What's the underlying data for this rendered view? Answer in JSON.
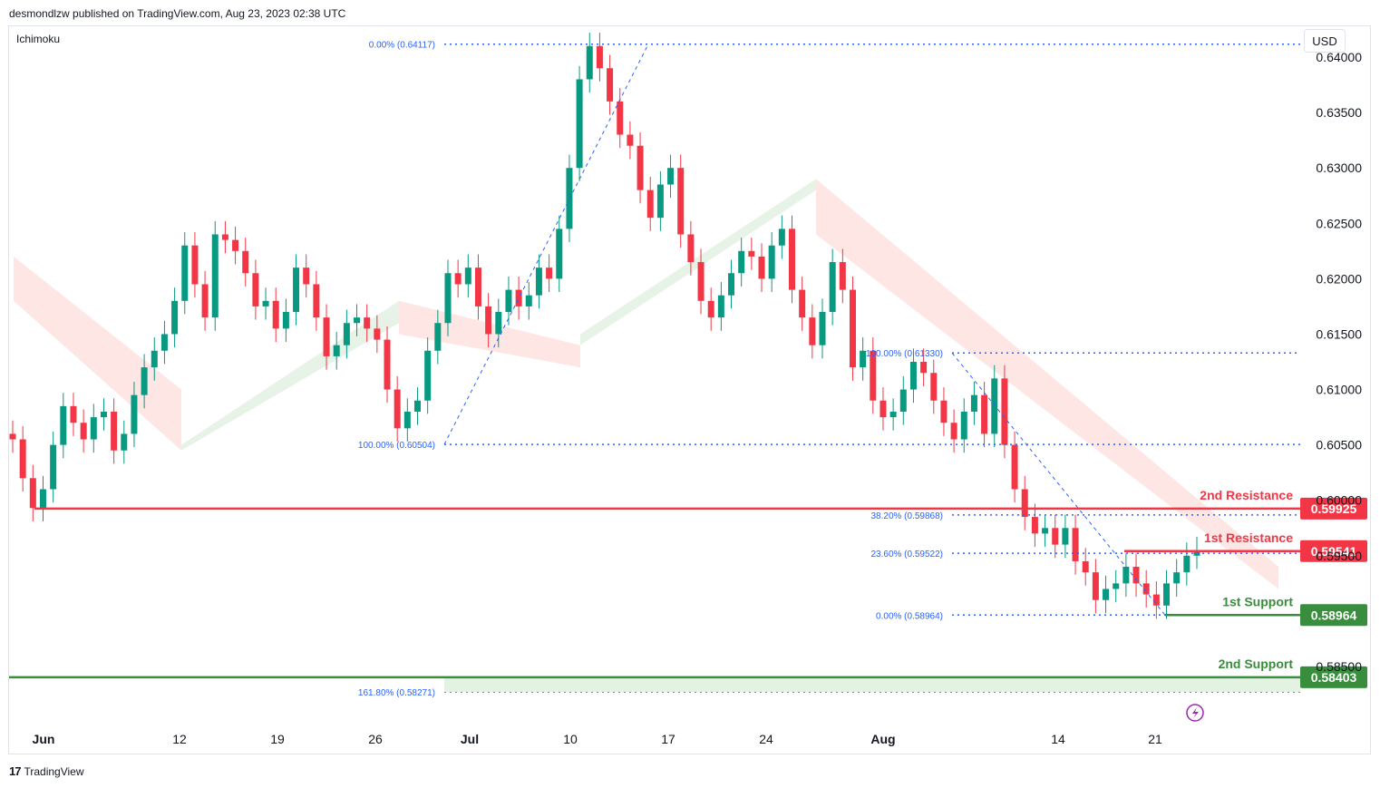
{
  "header": {
    "publisher_text": "desmondlzw published on TradingView.com, Aug 23, 2023 02:38 UTC",
    "indicator": "Ichimoku",
    "currency": "USD",
    "footer_logo": "17",
    "footer_brand": "TradingView"
  },
  "colors": {
    "up": "#089981",
    "down": "#f23645",
    "resistance": "#f23645",
    "support": "#388e3c",
    "fib": "#2962ff",
    "cloud_bull": "#e3f2e3",
    "cloud_bear": "#fde3e1"
  },
  "chart_data": {
    "type": "candlestick",
    "y_ticks": [
      "0.64000",
      "0.63500",
      "0.63000",
      "0.62500",
      "0.62000",
      "0.61500",
      "0.61000",
      "0.60500",
      "0.60000",
      "0.59500",
      "0.58500"
    ],
    "x_ticks": [
      "Jun",
      "12",
      "19",
      "26",
      "Jul",
      "10",
      "17",
      "24",
      "Aug",
      "14",
      "21"
    ],
    "ylim": [
      0.579,
      0.6425
    ],
    "levels": [
      {
        "name": "2nd Resistance",
        "value": 0.59925,
        "label": "0.59925",
        "kind": "resistance"
      },
      {
        "name": "1st Resistance",
        "value": 0.59541,
        "label": "0.59541",
        "kind": "resistance"
      },
      {
        "name": "1st Support",
        "value": 0.58964,
        "label": "0.58964",
        "kind": "support"
      },
      {
        "name": "2nd Support",
        "value": 0.58403,
        "label": "0.58403",
        "kind": "support"
      }
    ],
    "fib_labels": [
      {
        "text": "0.00% (0.64117)",
        "value": 0.64117
      },
      {
        "text": "100.00% (0.60504)",
        "value": 0.60504
      },
      {
        "text": "161.80% (0.58271)",
        "value": 0.58271
      },
      {
        "text": "100.00% (0.61330)",
        "value": 0.6133
      },
      {
        "text": "38.20% (0.59868)",
        "value": 0.59868
      },
      {
        "text": "23.60% (0.59522)",
        "value": 0.59522
      },
      {
        "text": "0.00% (0.58964)",
        "value": 0.58964
      }
    ],
    "close_series": [
      0.6055,
      0.602,
      0.5993,
      0.601,
      0.605,
      0.6085,
      0.607,
      0.6055,
      0.6075,
      0.608,
      0.6045,
      0.606,
      0.6095,
      0.612,
      0.6135,
      0.615,
      0.618,
      0.623,
      0.6195,
      0.6165,
      0.624,
      0.6235,
      0.6225,
      0.6205,
      0.6175,
      0.618,
      0.6155,
      0.617,
      0.621,
      0.6195,
      0.6165,
      0.613,
      0.614,
      0.616,
      0.6165,
      0.6155,
      0.6145,
      0.61,
      0.6065,
      0.608,
      0.609,
      0.6135,
      0.616,
      0.6205,
      0.6195,
      0.621,
      0.6175,
      0.615,
      0.617,
      0.619,
      0.6175,
      0.6185,
      0.621,
      0.62,
      0.6245,
      0.63,
      0.638,
      0.641,
      0.639,
      0.636,
      0.633,
      0.632,
      0.628,
      0.6255,
      0.6285,
      0.63,
      0.624,
      0.6215,
      0.618,
      0.6165,
      0.6185,
      0.6205,
      0.6225,
      0.622,
      0.62,
      0.623,
      0.6245,
      0.619,
      0.6165,
      0.614,
      0.617,
      0.6215,
      0.619,
      0.612,
      0.6135,
      0.609,
      0.6075,
      0.608,
      0.61,
      0.6125,
      0.6115,
      0.609,
      0.607,
      0.6055,
      0.608,
      0.6095,
      0.606,
      0.611,
      0.605,
      0.601,
      0.5985,
      0.597,
      0.5975,
      0.596,
      0.5975,
      0.5945,
      0.5935,
      0.591,
      0.592,
      0.5925,
      0.594,
      0.5925,
      0.5915,
      0.5905,
      0.5925,
      0.5935,
      0.595,
      0.5955
    ]
  }
}
